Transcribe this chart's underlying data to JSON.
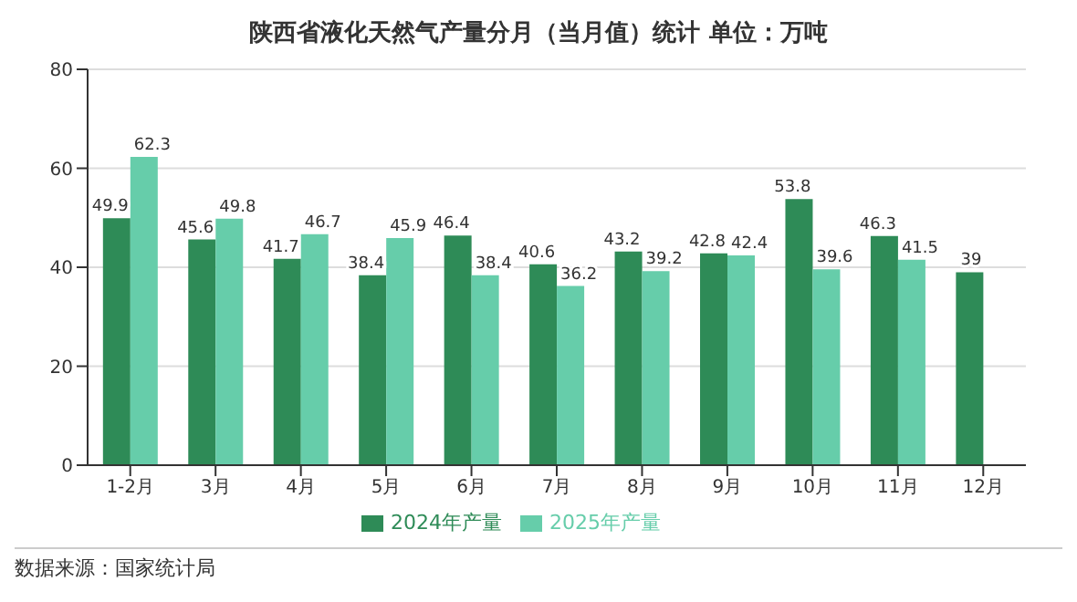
{
  "chart_data": {
    "type": "bar",
    "title": "陕西省液化天然气产量分月（当月值）统计  单位：万吨",
    "categories": [
      "1-2月",
      "3月",
      "4月",
      "5月",
      "6月",
      "7月",
      "8月",
      "9月",
      "10月",
      "11月",
      "12月"
    ],
    "series": [
      {
        "name": "2024年产量",
        "color": "#2e8b57",
        "values": [
          49.9,
          45.6,
          41.7,
          38.4,
          46.4,
          40.6,
          43.2,
          42.8,
          53.8,
          46.3,
          39
        ]
      },
      {
        "name": "2025年产量",
        "color": "#66cdaa",
        "values": [
          62.3,
          49.8,
          46.7,
          45.9,
          38.4,
          36.2,
          39.2,
          42.4,
          39.6,
          41.5,
          null
        ]
      }
    ],
    "ylim": [
      0,
      80
    ],
    "yticks": [
      0,
      20,
      40,
      60,
      80
    ],
    "grid": "y",
    "legend": "bottom",
    "data_labels": true,
    "annotations": [
      "数据来源：国家统计局"
    ]
  }
}
